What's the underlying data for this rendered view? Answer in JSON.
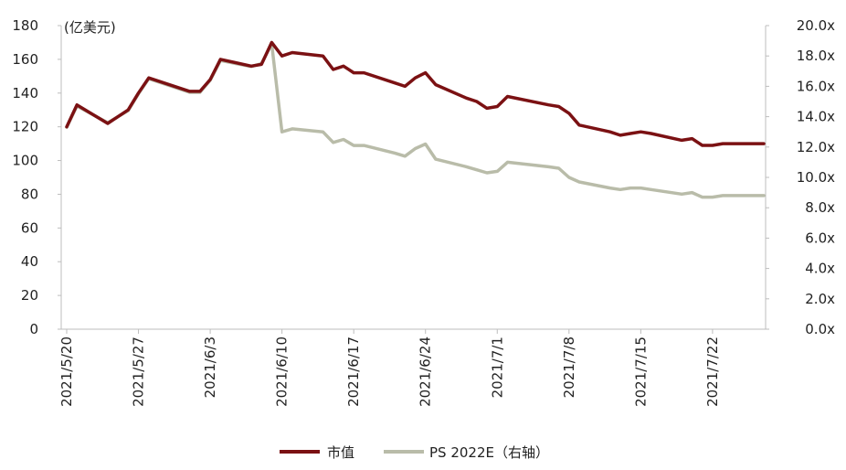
{
  "chart_data": {
    "type": "line",
    "title": "",
    "left_axis": {
      "unit_label": "(亿美元)",
      "range": [
        0,
        180
      ],
      "ticks": [
        0,
        20,
        40,
        60,
        80,
        100,
        120,
        140,
        160,
        180
      ],
      "tick_labels": [
        "0",
        "20",
        "40",
        "60",
        "80",
        "100",
        "120",
        "140",
        "160",
        "180"
      ]
    },
    "right_axis": {
      "range": [
        0,
        20
      ],
      "ticks": [
        0,
        2,
        4,
        6,
        8,
        10,
        12,
        14,
        16,
        18,
        20
      ],
      "tick_labels": [
        "0.0x",
        "2.0x",
        "4.0x",
        "6.0x",
        "8.0x",
        "10.0x",
        "12.0x",
        "14.0x",
        "16.0x",
        "18.0x",
        "20.0x"
      ]
    },
    "x_tick_labels": [
      "2021/5/20",
      "2021/5/27",
      "2021/6/3",
      "2021/6/10",
      "2021/6/17",
      "2021/6/24",
      "2021/7/1",
      "2021/7/8",
      "2021/7/15",
      "2021/7/22"
    ],
    "x": [
      "2021/5/20",
      "2021/5/21",
      "2021/5/24",
      "2021/5/25",
      "2021/5/26",
      "2021/5/27",
      "2021/5/28",
      "2021/6/1",
      "2021/6/2",
      "2021/6/3",
      "2021/6/4",
      "2021/6/7",
      "2021/6/8",
      "2021/6/9",
      "2021/6/10",
      "2021/6/11",
      "2021/6/14",
      "2021/6/15",
      "2021/6/16",
      "2021/6/17",
      "2021/6/18",
      "2021/6/21",
      "2021/6/22",
      "2021/6/23",
      "2021/6/24",
      "2021/6/25",
      "2021/6/28",
      "2021/6/29",
      "2021/6/30",
      "2021/7/1",
      "2021/7/2",
      "2021/7/6",
      "2021/7/7",
      "2021/7/8",
      "2021/7/9",
      "2021/7/12",
      "2021/7/13",
      "2021/7/14",
      "2021/7/15",
      "2021/7/16",
      "2021/7/19",
      "2021/7/20",
      "2021/7/21",
      "2021/7/22",
      "2021/7/23",
      "2021/7/26",
      "2021/7/27"
    ],
    "series": [
      {
        "name": "市值",
        "axis": "left",
        "color": "#7b1113",
        "values": [
          120,
          133,
          122,
          126,
          130,
          140,
          149,
          141,
          141,
          148,
          160,
          156,
          157,
          170,
          162,
          164,
          162,
          154,
          156,
          152,
          152,
          146,
          144,
          149,
          152,
          145,
          137,
          135,
          131,
          132,
          138,
          133,
          132,
          128,
          121,
          117,
          115,
          116,
          117,
          116,
          112,
          113,
          109,
          109,
          110,
          110,
          110
        ]
      },
      {
        "name": "PS 2022E（右轴）",
        "axis": "right",
        "color": "#b9bca9",
        "values": [
          13.3,
          14.7,
          13.6,
          14.0,
          14.4,
          15.5,
          16.5,
          15.6,
          15.6,
          16.4,
          17.7,
          17.3,
          17.5,
          18.8,
          13.0,
          13.2,
          13.0,
          12.3,
          12.5,
          12.1,
          12.1,
          11.6,
          11.4,
          11.9,
          12.2,
          11.2,
          10.7,
          10.5,
          10.3,
          10.4,
          11.0,
          10.7,
          10.6,
          10.0,
          9.7,
          9.3,
          9.2,
          9.3,
          9.3,
          9.2,
          8.9,
          9.0,
          8.7,
          8.7,
          8.8,
          8.8,
          8.8
        ]
      }
    ],
    "grid": false,
    "legend": "bottom-center"
  }
}
